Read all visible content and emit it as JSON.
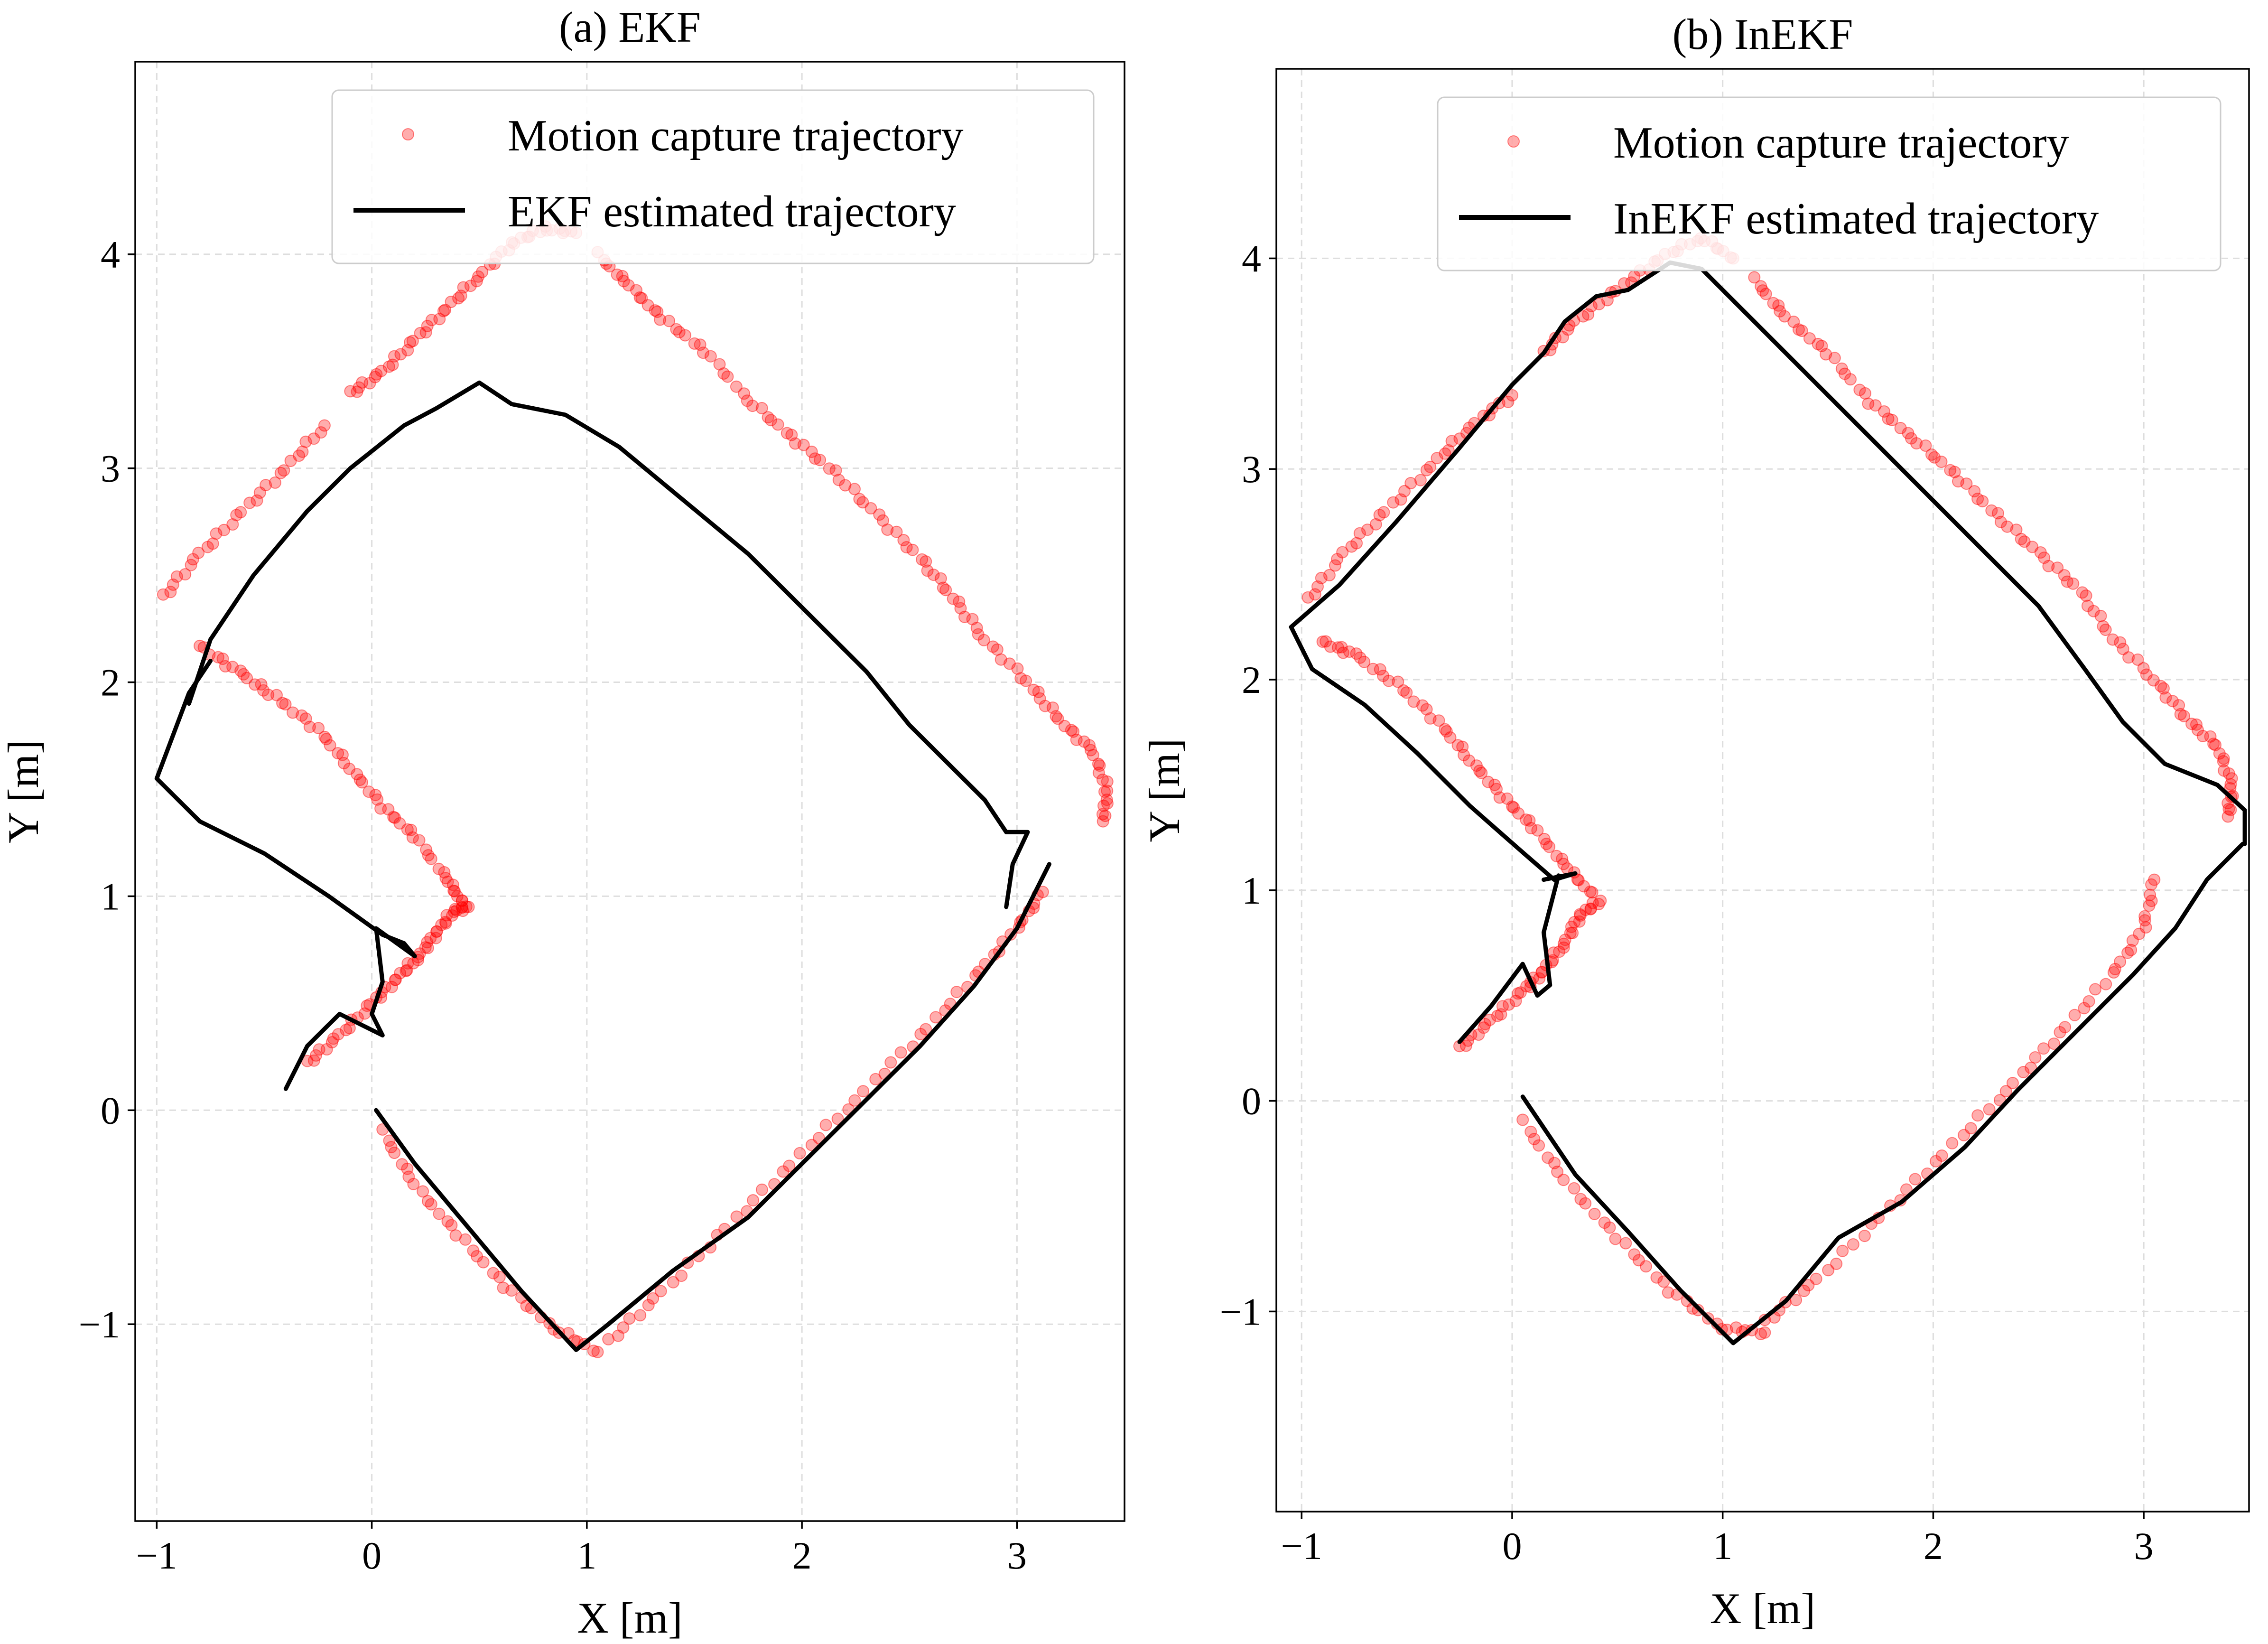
{
  "chart_data": [
    {
      "type": "scatter",
      "title": "(a) EKF",
      "xlabel": "X [m]",
      "ylabel": "Y [m]",
      "xlim": [
        -1.1,
        3.5
      ],
      "ylim": [
        -1.92,
        4.9
      ],
      "xticks": [
        -1,
        0,
        1,
        2,
        3
      ],
      "yticks": [
        -1,
        0,
        1,
        2,
        3,
        4
      ],
      "grid": true,
      "legend_position": "top-right",
      "series": [
        {
          "name": "Motion capture trajectory",
          "kind": "scatter",
          "color": "#ff0000",
          "segments": [
            [
              [
                0.05,
                -0.1
              ],
              [
                0.2,
                -0.35
              ],
              [
                0.4,
                -0.58
              ],
              [
                0.62,
                -0.82
              ],
              [
                0.85,
                -1.02
              ],
              [
                1.05,
                -1.13
              ]
            ],
            [
              [
                1.1,
                -1.08
              ],
              [
                1.35,
                -0.85
              ],
              [
                1.65,
                -0.55
              ],
              [
                1.95,
                -0.25
              ],
              [
                2.25,
                0.05
              ],
              [
                2.55,
                0.35
              ],
              [
                2.8,
                0.62
              ],
              [
                3.0,
                0.85
              ],
              [
                3.12,
                1.02
              ]
            ],
            [
              [
                -0.3,
                0.22
              ],
              [
                -0.15,
                0.35
              ],
              [
                0.0,
                0.5
              ],
              [
                0.12,
                0.62
              ],
              [
                0.22,
                0.72
              ],
              [
                0.3,
                0.83
              ],
              [
                0.38,
                0.93
              ],
              [
                0.45,
                0.95
              ]
            ],
            [
              [
                0.42,
                0.97
              ],
              [
                0.35,
                1.08
              ],
              [
                0.2,
                1.28
              ],
              [
                0.05,
                1.42
              ],
              [
                -0.1,
                1.6
              ],
              [
                -0.25,
                1.78
              ],
              [
                -0.45,
                1.93
              ],
              [
                -0.62,
                2.05
              ],
              [
                -0.8,
                2.17
              ]
            ],
            [
              [
                -0.97,
                2.4
              ],
              [
                -0.8,
                2.6
              ],
              [
                -0.6,
                2.8
              ],
              [
                -0.4,
                3.0
              ],
              [
                -0.22,
                3.2
              ]
            ],
            [
              [
                -0.1,
                3.35
              ],
              [
                0.05,
                3.45
              ],
              [
                0.2,
                3.6
              ],
              [
                0.35,
                3.75
              ],
              [
                0.5,
                3.9
              ],
              [
                0.65,
                4.05
              ],
              [
                0.8,
                4.12
              ],
              [
                0.95,
                4.1
              ]
            ],
            [
              [
                1.05,
                4.0
              ],
              [
                1.2,
                3.85
              ],
              [
                1.35,
                3.7
              ],
              [
                1.55,
                3.55
              ],
              [
                1.75,
                3.32
              ],
              [
                1.95,
                3.15
              ],
              [
                2.15,
                2.98
              ],
              [
                2.35,
                2.78
              ],
              [
                2.55,
                2.58
              ],
              [
                2.7,
                2.4
              ],
              [
                2.85,
                2.2
              ],
              [
                3.05,
                2.0
              ],
              [
                3.2,
                1.82
              ],
              [
                3.35,
                1.68
              ],
              [
                3.42,
                1.5
              ],
              [
                3.4,
                1.35
              ]
            ]
          ]
        },
        {
          "name": "EKF estimated trajectory",
          "kind": "line",
          "color": "#000000",
          "segments": [
            [
              [
                0.02,
                0.0
              ],
              [
                0.2,
                -0.25
              ],
              [
                0.45,
                -0.55
              ],
              [
                0.7,
                -0.85
              ],
              [
                0.95,
                -1.12
              ],
              [
                1.1,
                -1.0
              ],
              [
                1.4,
                -0.75
              ],
              [
                1.75,
                -0.5
              ],
              [
                2.05,
                -0.2
              ],
              [
                2.3,
                0.05
              ],
              [
                2.55,
                0.3
              ],
              [
                2.8,
                0.58
              ],
              [
                3.0,
                0.85
              ],
              [
                3.15,
                1.15
              ]
            ],
            [
              [
                2.95,
                0.95
              ],
              [
                2.98,
                1.15
              ],
              [
                3.05,
                1.3
              ],
              [
                2.95,
                1.3
              ],
              [
                2.85,
                1.45
              ],
              [
                2.7,
                1.6
              ],
              [
                2.5,
                1.8
              ],
              [
                2.3,
                2.05
              ],
              [
                2.0,
                2.35
              ],
              [
                1.75,
                2.6
              ],
              [
                1.45,
                2.85
              ],
              [
                1.15,
                3.1
              ],
              [
                0.9,
                3.25
              ],
              [
                0.65,
                3.3
              ],
              [
                0.5,
                3.4
              ],
              [
                0.3,
                3.28
              ],
              [
                0.15,
                3.2
              ],
              [
                -0.1,
                3.0
              ],
              [
                -0.3,
                2.8
              ],
              [
                -0.55,
                2.5
              ],
              [
                -0.75,
                2.2
              ],
              [
                -0.85,
                1.9
              ]
            ],
            [
              [
                -0.75,
                2.1
              ],
              [
                -0.85,
                1.95
              ],
              [
                -1.0,
                1.55
              ],
              [
                -0.8,
                1.35
              ],
              [
                -0.5,
                1.2
              ],
              [
                -0.2,
                1.0
              ],
              [
                0.05,
                0.82
              ],
              [
                0.15,
                0.78
              ],
              [
                0.2,
                0.72
              ]
            ],
            [
              [
                0.2,
                0.72
              ],
              [
                0.02,
                0.85
              ],
              [
                0.05,
                0.6
              ],
              [
                0.0,
                0.45
              ],
              [
                0.05,
                0.35
              ],
              [
                -0.15,
                0.45
              ],
              [
                -0.3,
                0.3
              ],
              [
                -0.4,
                0.1
              ]
            ]
          ]
        }
      ]
    },
    {
      "type": "scatter",
      "title": "(b) InEKF",
      "xlabel": "X [m]",
      "ylabel": "Y [m]",
      "xlim": [
        -1.12,
        3.5
      ],
      "ylim": [
        -1.95,
        4.9
      ],
      "xticks": [
        -1,
        0,
        1,
        2,
        3
      ],
      "yticks": [
        -1,
        0,
        1,
        2,
        3,
        4
      ],
      "grid": true,
      "legend_position": "top-right",
      "series": [
        {
          "name": "Motion capture trajectory",
          "kind": "scatter",
          "color": "#ff0000",
          "segments": [
            [
              [
                0.05,
                -0.1
              ],
              [
                0.25,
                -0.38
              ],
              [
                0.5,
                -0.65
              ],
              [
                0.75,
                -0.9
              ],
              [
                1.0,
                -1.08
              ],
              [
                1.2,
                -1.1
              ]
            ],
            [
              [
                1.2,
                -1.05
              ],
              [
                1.45,
                -0.85
              ],
              [
                1.75,
                -0.55
              ],
              [
                2.05,
                -0.25
              ],
              [
                2.35,
                0.05
              ],
              [
                2.6,
                0.32
              ],
              [
                2.85,
                0.6
              ],
              [
                3.0,
                0.82
              ],
              [
                3.05,
                1.05
              ]
            ],
            [
              [
                -0.25,
                0.25
              ],
              [
                -0.1,
                0.38
              ],
              [
                0.05,
                0.52
              ],
              [
                0.15,
                0.62
              ],
              [
                0.25,
                0.75
              ],
              [
                0.32,
                0.88
              ],
              [
                0.42,
                0.95
              ]
            ],
            [
              [
                0.38,
                0.98
              ],
              [
                0.25,
                1.12
              ],
              [
                0.1,
                1.3
              ],
              [
                -0.05,
                1.45
              ],
              [
                -0.2,
                1.62
              ],
              [
                -0.35,
                1.8
              ],
              [
                -0.55,
                1.98
              ],
              [
                -0.75,
                2.12
              ],
              [
                -0.9,
                2.18
              ]
            ],
            [
              [
                -0.97,
                2.38
              ],
              [
                -0.8,
                2.6
              ],
              [
                -0.6,
                2.8
              ],
              [
                -0.38,
                3.02
              ],
              [
                -0.2,
                3.2
              ],
              [
                0.0,
                3.35
              ]
            ],
            [
              [
                0.15,
                3.55
              ],
              [
                0.3,
                3.7
              ],
              [
                0.5,
                3.85
              ],
              [
                0.7,
                4.0
              ],
              [
                0.9,
                4.1
              ],
              [
                1.05,
                4.0
              ]
            ],
            [
              [
                1.15,
                3.9
              ],
              [
                1.3,
                3.72
              ],
              [
                1.5,
                3.55
              ],
              [
                1.7,
                3.32
              ],
              [
                1.9,
                3.15
              ],
              [
                2.1,
                2.98
              ],
              [
                2.3,
                2.78
              ],
              [
                2.5,
                2.6
              ],
              [
                2.7,
                2.42
              ],
              [
                2.85,
                2.2
              ],
              [
                3.05,
                2.0
              ],
              [
                3.2,
                1.82
              ],
              [
                3.35,
                1.68
              ],
              [
                3.42,
                1.5
              ],
              [
                3.4,
                1.35
              ]
            ]
          ]
        },
        {
          "name": "InEKF estimated trajectory",
          "kind": "line",
          "color": "#000000",
          "segments": [
            [
              [
                0.05,
                0.02
              ],
              [
                0.3,
                -0.35
              ],
              [
                0.55,
                -0.62
              ],
              [
                0.8,
                -0.9
              ],
              [
                1.05,
                -1.15
              ],
              [
                1.3,
                -0.95
              ],
              [
                1.55,
                -0.65
              ],
              [
                1.85,
                -0.48
              ],
              [
                2.15,
                -0.22
              ],
              [
                2.4,
                0.05
              ],
              [
                2.7,
                0.35
              ],
              [
                2.95,
                0.6
              ],
              [
                3.15,
                0.82
              ],
              [
                3.3,
                1.05
              ],
              [
                3.47,
                1.22
              ]
            ],
            [
              [
                3.48,
                1.22
              ],
              [
                3.48,
                1.38
              ],
              [
                3.35,
                1.5
              ],
              [
                3.1,
                1.6
              ],
              [
                2.9,
                1.8
              ],
              [
                2.72,
                2.05
              ],
              [
                2.5,
                2.35
              ],
              [
                2.25,
                2.6
              ],
              [
                2.0,
                2.85
              ],
              [
                1.7,
                3.15
              ],
              [
                1.4,
                3.45
              ],
              [
                1.1,
                3.75
              ],
              [
                0.9,
                3.95
              ],
              [
                0.75,
                3.98
              ],
              [
                0.55,
                3.85
              ],
              [
                0.4,
                3.82
              ],
              [
                0.25,
                3.7
              ],
              [
                0.15,
                3.55
              ],
              [
                0.0,
                3.4
              ],
              [
                -0.25,
                3.1
              ],
              [
                -0.55,
                2.75
              ],
              [
                -0.82,
                2.45
              ],
              [
                -1.05,
                2.25
              ]
            ],
            [
              [
                -1.05,
                2.25
              ],
              [
                -0.95,
                2.05
              ],
              [
                -0.7,
                1.88
              ],
              [
                -0.45,
                1.65
              ],
              [
                -0.2,
                1.4
              ],
              [
                0.05,
                1.18
              ],
              [
                0.2,
                1.05
              ],
              [
                0.3,
                1.08
              ],
              [
                0.15,
                1.05
              ]
            ],
            [
              [
                0.22,
                1.07
              ],
              [
                0.15,
                0.8
              ],
              [
                0.18,
                0.55
              ],
              [
                0.12,
                0.5
              ],
              [
                0.05,
                0.65
              ],
              [
                -0.1,
                0.45
              ],
              [
                -0.25,
                0.28
              ]
            ]
          ]
        }
      ]
    }
  ]
}
